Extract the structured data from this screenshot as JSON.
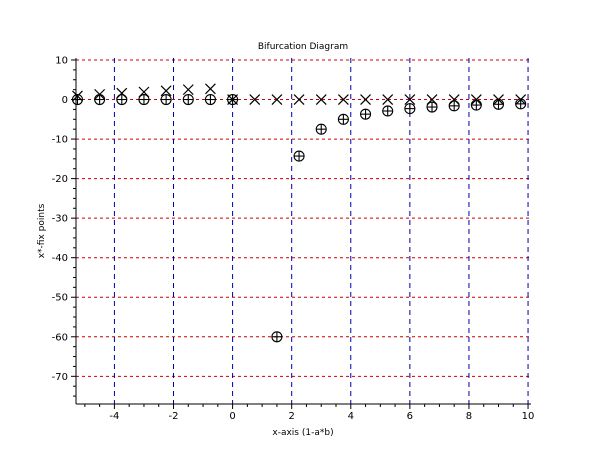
{
  "chart_data": {
    "type": "scatter",
    "title": "Bifurcation Diagram",
    "xlabel": "x-axis (1-a*b)",
    "ylabel": "x*-fix points",
    "xlim": [
      -5.3,
      10.1
    ],
    "ylim": [
      -77,
      10.5
    ],
    "xticks": [
      -4,
      -2,
      0,
      2,
      4,
      6,
      8,
      10
    ],
    "yticks": [
      10,
      0,
      -10,
      -20,
      -30,
      -40,
      -50,
      -60,
      -70
    ],
    "x_grid_lines": [
      -4,
      -2,
      0,
      2,
      4,
      6,
      8,
      10
    ],
    "y_grid_lines": [
      10,
      0,
      -10,
      -20,
      -30,
      -40,
      -50,
      -60,
      -70
    ],
    "grid": true,
    "series": [
      {
        "marker": "x",
        "color": "#000000",
        "x": [
          -5.25,
          -4.5,
          -3.75,
          -3.0,
          -2.25,
          -1.5,
          -0.75,
          0.0,
          0.75,
          1.5,
          2.25,
          3.0,
          3.75,
          4.5,
          5.25,
          6.0,
          6.75,
          7.5,
          8.25,
          9.0,
          9.75
        ],
        "y": [
          0.9,
          1.3,
          1.6,
          1.9,
          2.2,
          2.5,
          2.7,
          0.0,
          0.0,
          0.0,
          0.0,
          0.0,
          0.0,
          0.0,
          0.0,
          0.0,
          0.0,
          0.0,
          0.0,
          0.0,
          0.0
        ]
      },
      {
        "marker": "circle-plus",
        "color": "#000000",
        "x": [
          -5.25,
          -4.5,
          -3.75,
          -3.0,
          -2.25,
          -1.5,
          -0.75,
          0.0,
          1.5,
          2.25,
          3.0,
          3.75,
          4.5,
          5.25,
          6.0,
          6.75,
          7.5,
          8.25,
          9.0,
          9.75
        ],
        "y": [
          0.0,
          0.0,
          0.0,
          0.0,
          0.0,
          0.0,
          0.0,
          0.0,
          -60.0,
          -14.3,
          -7.5,
          -5.0,
          -3.7,
          -2.9,
          -2.3,
          -1.9,
          -1.6,
          -1.4,
          -1.2,
          -1.1
        ]
      }
    ]
  },
  "colors": {
    "grid_vertical": "#0000aa",
    "grid_horizontal": "#cc0000",
    "axes": "#000000"
  }
}
